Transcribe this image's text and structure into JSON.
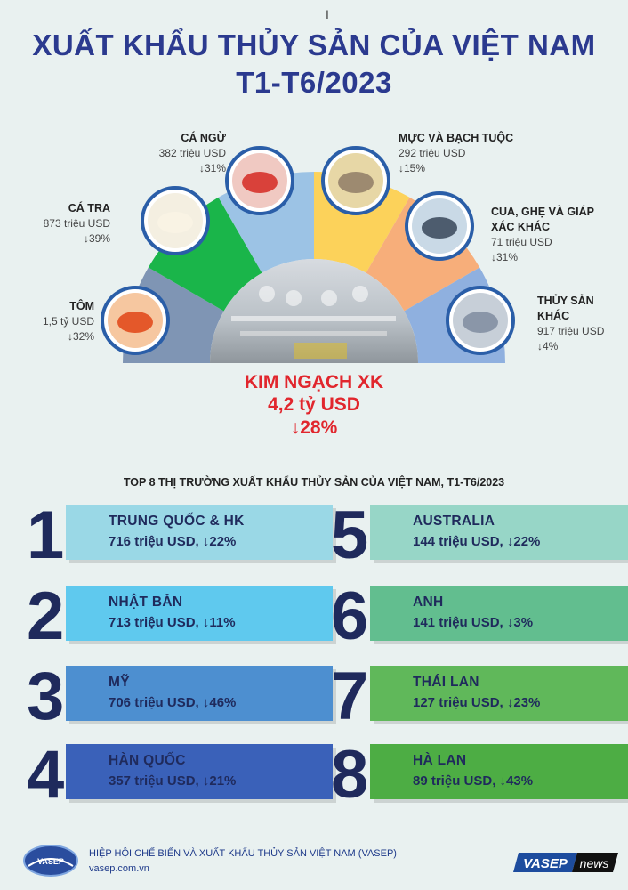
{
  "title": {
    "line1": "XUẤT KHẨU THỦY SẢN CỦA VIỆT NAM",
    "line2": "T1-T6/2023"
  },
  "segments": [
    {
      "name": "TÔM",
      "value": "1,5 tỷ  USD",
      "change": "↓32%",
      "color": "#7f95b4",
      "icon": "shrimp-icon"
    },
    {
      "name": "CÁ TRA",
      "value": "873 triệu USD",
      "change": "↓39%",
      "color": "#1ab54a",
      "icon": "pangasius-fish-icon"
    },
    {
      "name": "CÁ NGỪ",
      "value": "382 triệu USD",
      "change": "↓31%",
      "color": "#9cc3e5",
      "icon": "tuna-icon"
    },
    {
      "name": "MỰC VÀ BẠCH TUỘC",
      "value": "292 triệu USD",
      "change": "↓15%",
      "color": "#fcd25a",
      "icon": "squid-icon"
    },
    {
      "name": "CUA, GHẸ VÀ GIÁP",
      "name2": "XÁC KHÁC",
      "value": "71 triệu USD",
      "change": "↓31%",
      "color": "#f7ae7a",
      "icon": "crab-icon"
    },
    {
      "name": "THỦY SẢN",
      "name2": "KHÁC",
      "value": "917 triệu USD",
      "change": "↓4%",
      "color": "#8fb0df",
      "icon": "other-fish-icon"
    }
  ],
  "total": {
    "label": "KIM NGẠCH XK",
    "value": "4,2 tỷ USD",
    "change": "↓28%"
  },
  "top_title": "TOP 8 THỊ TRƯỜNG XUẤT KHẨU THỦY SẢN CỦA VIỆT NAM, T1-T6/2023",
  "markets": [
    {
      "rank": "1",
      "country": "TRUNG QUỐC & HK",
      "value": "716 triệu USD, ↓22%",
      "color": "#9ad8e6"
    },
    {
      "rank": "2",
      "country": "NHẬT BẢN",
      "value": "713 triệu USD, ↓11%",
      "color": "#5fc9ee"
    },
    {
      "rank": "3",
      "country": "MỸ",
      "value": "706 triệu USD, ↓46%",
      "color": "#4d8fd0"
    },
    {
      "rank": "4",
      "country": "HÀN QUỐC",
      "value": "357 triệu USD, ↓21%",
      "color": "#3a61b9"
    },
    {
      "rank": "5",
      "country": "AUSTRALIA",
      "value": "144 triệu USD, ↓22%",
      "color": "#97d6c7"
    },
    {
      "rank": "6",
      "country": "ANH",
      "value": "141 triệu USD, ↓3%",
      "color": "#62be8f"
    },
    {
      "rank": "7",
      "country": "THÁI LAN",
      "value": "127 triệu USD, ↓23%",
      "color": "#60b85a"
    },
    {
      "rank": "8",
      "country": "HÀ LAN",
      "value": "89 triệu USD, ↓43%",
      "color": "#4dad44"
    }
  ],
  "footer": {
    "logo_text": "VASEP",
    "org": "HIỆP HỘI CHẾ BIẾN VÀ XUẤT KHẨU THỦY SẢN VIỆT NAM (VASEP)",
    "website": "vasep.com.vn",
    "badge_left": "VASEP",
    "badge_right": "news"
  }
}
